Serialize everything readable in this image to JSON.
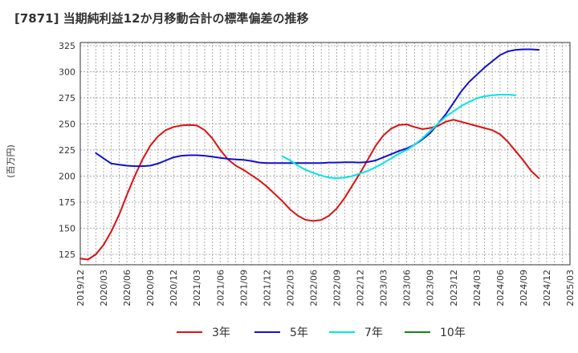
{
  "chart_data": {
    "type": "line",
    "title": "[7871]  当期純利益12か月移動合計の標準偏差の推移",
    "ylabel": "(百万円)",
    "xlabel": "",
    "ylim": [
      115,
      328
    ],
    "y_ticks": [
      125,
      150,
      175,
      200,
      225,
      250,
      275,
      300,
      325
    ],
    "x_tick_labels": [
      "2019/12",
      "2020/03",
      "2020/06",
      "2020/09",
      "2020/12",
      "2021/03",
      "2021/06",
      "2021/09",
      "2021/12",
      "2022/03",
      "2022/06",
      "2022/09",
      "2022/12",
      "2023/03",
      "2023/06",
      "2023/09",
      "2023/12",
      "2024/03",
      "2024/06",
      "2024/09",
      "2024/12",
      "2025/03"
    ],
    "x_start": "2019/12",
    "grid": true,
    "legend_position": "bottom",
    "series": [
      {
        "name": "3年",
        "color": "#dd1111",
        "start": "2019/12",
        "values": [
          121,
          120,
          125,
          134,
          147,
          163,
          182,
          200,
          216,
          229,
          238,
          244,
          247,
          248.5,
          249,
          248.5,
          244,
          236,
          225,
          216,
          210,
          206,
          201,
          196,
          190,
          183,
          176,
          168,
          162,
          158,
          157,
          158,
          162,
          169,
          179,
          191,
          203,
          216,
          229,
          239,
          245.5,
          249,
          249.5,
          247,
          245,
          246,
          248,
          252,
          254,
          252,
          250,
          248,
          246,
          244,
          240,
          233,
          224,
          215,
          205,
          198
        ]
      },
      {
        "name": "5年",
        "color": "#1111cc",
        "start": "2020/02",
        "values": [
          222,
          217,
          212,
          211,
          210,
          209.5,
          209.5,
          210,
          212,
          215,
          218,
          219.5,
          220,
          220,
          219.5,
          218.5,
          217.5,
          216.5,
          216,
          215.5,
          214.5,
          213,
          212.5,
          212.5,
          212.5,
          212.5,
          212.5,
          212.5,
          212.5,
          212.5,
          213,
          213,
          213.3,
          213.2,
          213,
          213.5,
          215,
          218,
          221,
          224,
          226.5,
          230,
          235,
          241,
          250,
          259,
          270,
          281,
          290,
          297,
          304,
          310,
          316,
          319.5,
          321,
          321.5,
          321.5,
          321
        ]
      },
      {
        "name": "7年",
        "color": "#00e5e5",
        "start": "2022/02",
        "values": [
          219,
          215,
          210,
          206,
          203,
          200.5,
          198.5,
          198,
          198.5,
          200,
          202.5,
          205,
          208.5,
          212.5,
          217,
          221.5,
          225,
          230,
          236,
          243,
          250,
          257,
          262,
          267,
          271,
          274.5,
          276.5,
          277.5,
          278,
          278,
          277.5
        ]
      },
      {
        "name": "10年",
        "color": "#118811",
        "start": "2024/12",
        "values": []
      }
    ]
  }
}
